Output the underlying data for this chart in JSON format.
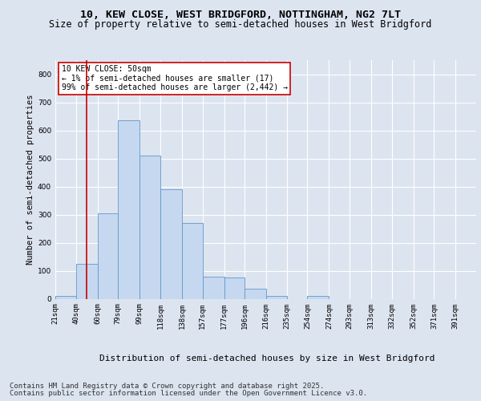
{
  "title1": "10, KEW CLOSE, WEST BRIDGFORD, NOTTINGHAM, NG2 7LT",
  "title2": "Size of property relative to semi-detached houses in West Bridgford",
  "xlabel": "Distribution of semi-detached houses by size in West Bridgford",
  "ylabel": "Number of semi-detached properties",
  "footer1": "Contains HM Land Registry data © Crown copyright and database right 2025.",
  "footer2": "Contains public sector information licensed under the Open Government Licence v3.0.",
  "annotation_title": "10 KEW CLOSE: 50sqm",
  "annotation_line1": "← 1% of semi-detached houses are smaller (17)",
  "annotation_line2": "99% of semi-detached houses are larger (2,442) →",
  "bar_edges": [
    21,
    40,
    60,
    79,
    99,
    118,
    138,
    157,
    177,
    196,
    216,
    235,
    254,
    274,
    293,
    313,
    332,
    352,
    371,
    391,
    410
  ],
  "bar_values": [
    10,
    125,
    305,
    635,
    510,
    390,
    270,
    80,
    75,
    35,
    10,
    0,
    10,
    0,
    0,
    0,
    0,
    0,
    0,
    0
  ],
  "bar_color": "#c5d8f0",
  "bar_edge_color": "#6496c8",
  "vline_color": "#cc0000",
  "vline_x": 50,
  "annotation_box_color": "#cc0000",
  "ylim": [
    0,
    850
  ],
  "yticks": [
    0,
    100,
    200,
    300,
    400,
    500,
    600,
    700,
    800
  ],
  "bg_color": "#dce4f0",
  "plot_bg_color": "#dce4f0",
  "grid_color": "#ffffff",
  "title_fontsize": 9.5,
  "subtitle_fontsize": 8.5,
  "tick_fontsize": 6.5,
  "ylabel_fontsize": 7.5,
  "xlabel_fontsize": 8,
  "footer_fontsize": 6.5,
  "annotation_fontsize": 7
}
